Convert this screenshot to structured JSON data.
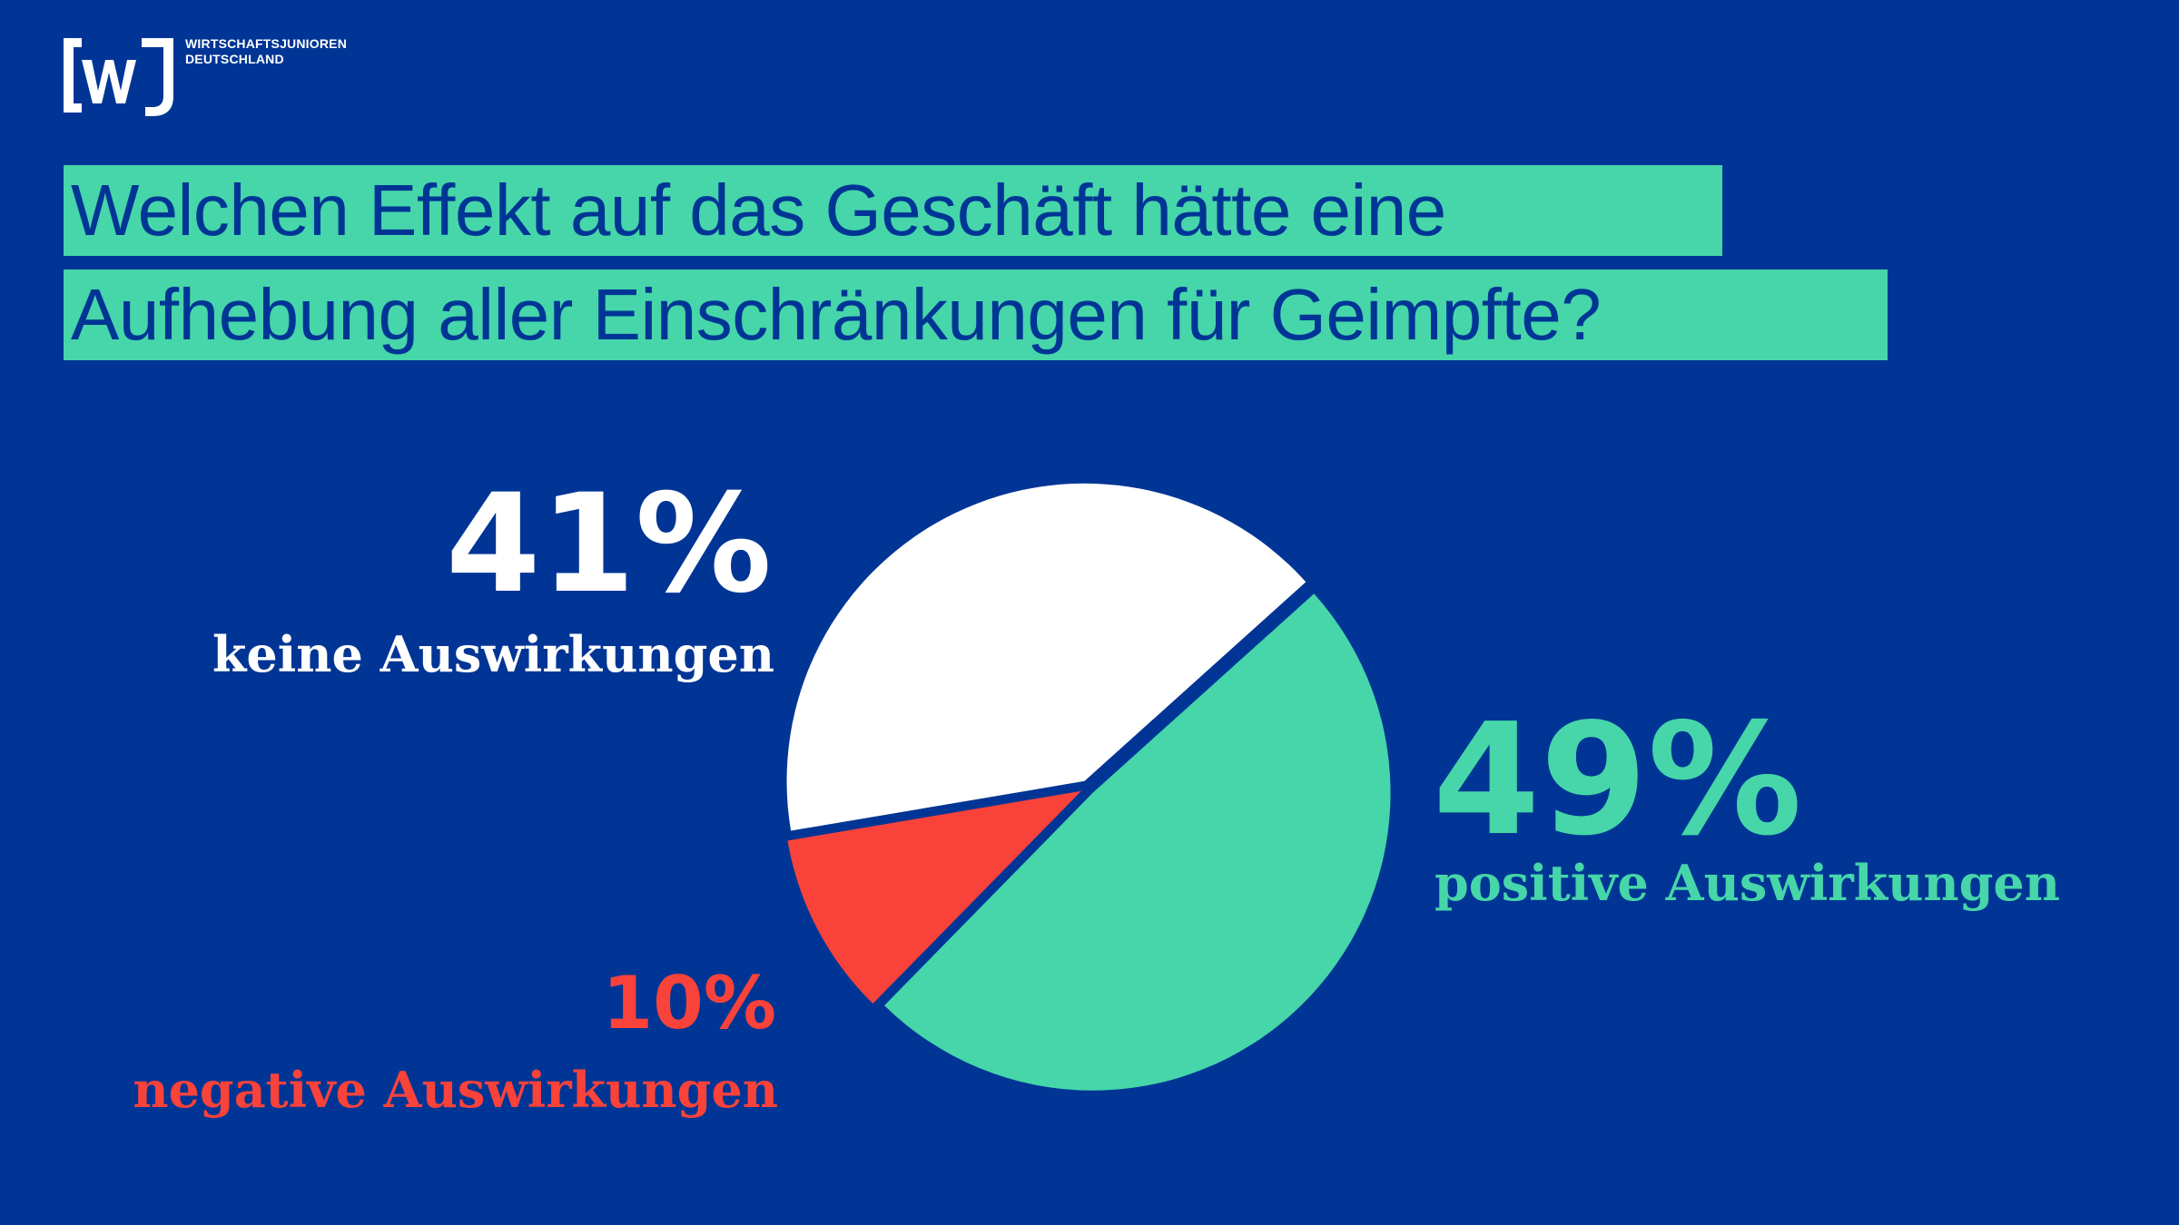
{
  "colors": {
    "background": "#003595",
    "accent_green": "#46d6a9",
    "white": "#ffffff",
    "red": "#f9423a"
  },
  "brand": {
    "logo_text": "[wJ]",
    "line1": "WIRTSCHAFTSJUNIOREN",
    "line2": "DEUTSCHLAND"
  },
  "headline": {
    "line1": "Welchen Effekt auf das Geschäft hätte eine",
    "line2": "Aufhebung aller Einschränkungen für Geimpfte?"
  },
  "chart_data": {
    "type": "pie",
    "title": "Welchen Effekt auf das Geschäft hätte eine Aufhebung aller Einschränkungen für Geimpfte?",
    "slices": [
      {
        "label": "keine Auswirkungen",
        "value": 41,
        "display": "41%",
        "color": "#ffffff"
      },
      {
        "label": "positive Auswirkungen",
        "value": 49,
        "display": "49%",
        "color": "#46d6a9"
      },
      {
        "label": "negative Auswirkungen",
        "value": 10,
        "display": "10%",
        "color": "#f9423a"
      }
    ]
  }
}
